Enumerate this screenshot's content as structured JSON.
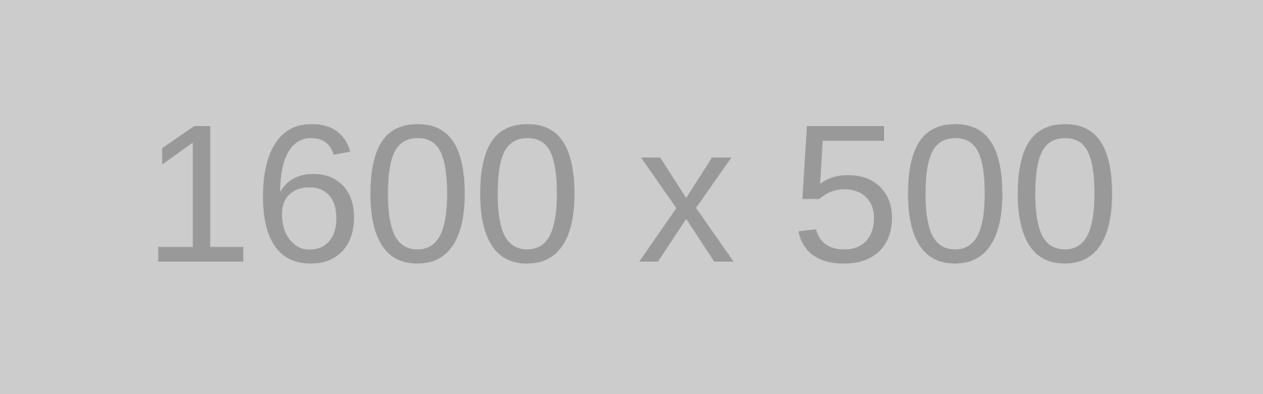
{
  "placeholder": {
    "label": "1600 x 500",
    "background_color": "#cccccc",
    "text_color": "#999999"
  }
}
